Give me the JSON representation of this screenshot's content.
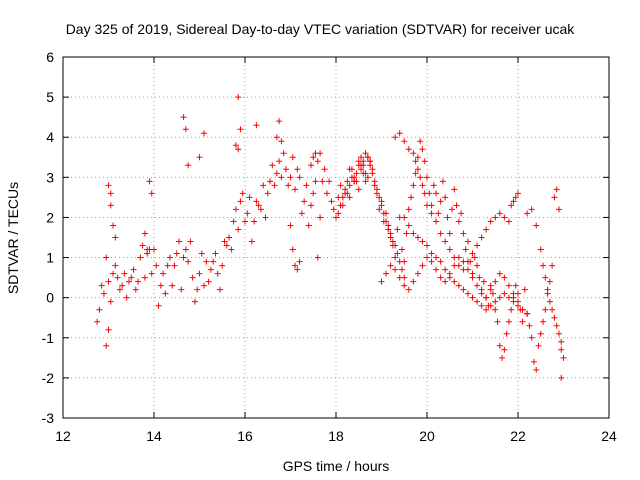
{
  "chart_data": {
    "type": "scatter",
    "title": "Day 325 of 2019, Sidereal Day-to-day VTEC variation (SDTVAR) for receiver ucak",
    "xlabel": "GPS time / hours",
    "ylabel": "SDTVAR / TECUs",
    "xlim": [
      12,
      24
    ],
    "ylim": [
      -3,
      6
    ],
    "xticks": [
      12,
      14,
      16,
      18,
      20,
      22,
      24
    ],
    "yticks": [
      -3,
      -2,
      -1,
      0,
      1,
      2,
      3,
      4,
      5,
      6
    ],
    "xtick_labels": [
      "12",
      "14",
      "16",
      "18",
      "20",
      "22",
      "24"
    ],
    "ytick_labels": [
      "-3",
      "-2",
      "-1",
      "0",
      "1",
      "2",
      "3",
      "4",
      "5",
      "6"
    ],
    "grid": true,
    "marker": "+",
    "series": [
      {
        "name": "ucak",
        "color": "#ff0000",
        "x": [
          12.75,
          12.8,
          12.85,
          12.9,
          12.95,
          13.0,
          13.05,
          13.1,
          13.15,
          13.2,
          13.25,
          13.3,
          13.35,
          13.4,
          13.45,
          13.5,
          13.55,
          13.6,
          13.65,
          13.7,
          13.75,
          13.8,
          13.85,
          13.9,
          13.95,
          14.0,
          14.05,
          14.1,
          14.15,
          14.2,
          14.25,
          14.3,
          14.35,
          14.4,
          14.45,
          14.5,
          14.55,
          14.6,
          14.65,
          14.7,
          14.75,
          14.8,
          14.85,
          14.9,
          14.95,
          15.0,
          15.05,
          15.1,
          15.15,
          15.2,
          15.25,
          15.3,
          15.35,
          15.4,
          15.45,
          15.5,
          15.55,
          15.6,
          15.65,
          15.7,
          15.75,
          15.8,
          15.85,
          15.9,
          15.95,
          16.0,
          16.05,
          16.1,
          16.15,
          16.2,
          16.25,
          16.3,
          16.35,
          16.4,
          16.45,
          16.5,
          16.55,
          16.6,
          16.65,
          16.7,
          16.75,
          16.8,
          16.85,
          16.9,
          16.95,
          17.0,
          17.05,
          17.1,
          17.15,
          17.2,
          17.25,
          17.3,
          17.35,
          17.4,
          17.45,
          17.5,
          17.55,
          17.6,
          17.65,
          17.7,
          17.75,
          17.8,
          17.85,
          17.9,
          17.95,
          18.0,
          18.05,
          18.1,
          18.15,
          18.2,
          18.25,
          18.3,
          18.35,
          18.4,
          18.45,
          18.5,
          18.55,
          18.6,
          18.65,
          18.7,
          18.75,
          18.8,
          18.85,
          18.9,
          18.95,
          19.0,
          19.05,
          19.1,
          19.15,
          19.2,
          19.25,
          19.3,
          19.35,
          19.4,
          19.45,
          19.5,
          19.55,
          19.6,
          19.65,
          19.7,
          19.75,
          19.8,
          19.85,
          19.9,
          19.95,
          20.0,
          20.05,
          20.1,
          20.15,
          20.2,
          20.25,
          20.3,
          20.35,
          20.4,
          20.45,
          20.5,
          20.55,
          20.6,
          20.65,
          20.7,
          20.75,
          20.8,
          20.85,
          20.9,
          20.95,
          21.0,
          21.05,
          21.1,
          21.15,
          21.2,
          21.25,
          21.3,
          21.35,
          21.4,
          21.45,
          21.5,
          21.55,
          21.6,
          21.65,
          21.7,
          21.75,
          21.8,
          21.85,
          21.9,
          21.95,
          22.0,
          22.05,
          22.1,
          22.15,
          22.2,
          22.25,
          22.3,
          22.35,
          22.4,
          22.45,
          22.5,
          22.55,
          22.6,
          22.65,
          22.7,
          22.75,
          22.8,
          22.85,
          22.9,
          22.95,
          23.0,
          12.95,
          13.0,
          13.05,
          13.0,
          13.05,
          13.1,
          13.15,
          13.8,
          13.85,
          13.9,
          13.95,
          14.65,
          14.7,
          14.75,
          15.0,
          15.1,
          15.85,
          15.9,
          15.8,
          15.85,
          16.25,
          16.7,
          16.75,
          16.8,
          17.0,
          17.05,
          17.1,
          17.15,
          17.2,
          17.45,
          17.5,
          17.55,
          17.6,
          17.65,
          18.3,
          18.4,
          18.5,
          18.55,
          18.6,
          18.65,
          18.7,
          18.75,
          19.3,
          19.4,
          19.5,
          19.6,
          19.7,
          19.75,
          19.8,
          19.85,
          19.9,
          19.95,
          20.0,
          20.1,
          20.2,
          20.3,
          20.4,
          20.5,
          20.6,
          20.7,
          20.8,
          20.9,
          21.0,
          21.1,
          21.2,
          21.3,
          21.4,
          21.5,
          21.6,
          21.7,
          21.8,
          21.85,
          21.9,
          21.95,
          22.0,
          22.2,
          22.3,
          22.4,
          22.5,
          22.55,
          22.6,
          22.65,
          22.7,
          22.75,
          22.8,
          22.85,
          22.9,
          22.95,
          22.95,
          19.5,
          19.6,
          19.7,
          19.8,
          19.9,
          20.0,
          20.1,
          20.2,
          20.3,
          20.4,
          20.5,
          20.6,
          20.7,
          20.8,
          20.9,
          21.0,
          21.1,
          21.2,
          21.3,
          21.4,
          21.5,
          21.6,
          21.7,
          21.8,
          21.9,
          22.0,
          22.1,
          22.2,
          19.0,
          19.1,
          19.2,
          19.3,
          19.4,
          19.5,
          19.6,
          19.7,
          19.8,
          19.9,
          20.0,
          20.1,
          20.2,
          20.3,
          20.4,
          20.5,
          20.6,
          20.7,
          20.8,
          20.9,
          21.0,
          21.1,
          21.2,
          21.3,
          21.4,
          21.5,
          21.6,
          21.7,
          21.8,
          21.9,
          22.0,
          22.1,
          22.2,
          18.05,
          18.1,
          18.15,
          18.2,
          18.25,
          18.3,
          18.35,
          18.4,
          18.45,
          18.5,
          18.55,
          18.6,
          18.65,
          18.7,
          18.75,
          18.8,
          18.85,
          18.9,
          18.95,
          19.0,
          19.05,
          19.1,
          19.15,
          19.2,
          19.25,
          19.3,
          19.35,
          19.4,
          19.45,
          19.5
        ],
        "y": [
          -0.6,
          -0.3,
          0.3,
          0.1,
          1.0,
          0.4,
          -0.1,
          0.6,
          0.8,
          0.5,
          0.2,
          0.3,
          0.6,
          0.0,
          0.4,
          0.5,
          0.7,
          0.2,
          0.4,
          1.0,
          1.3,
          0.5,
          1.1,
          1.2,
          0.6,
          1.2,
          0.8,
          -0.2,
          0.3,
          0.6,
          0.1,
          0.8,
          1.0,
          0.3,
          0.8,
          1.1,
          1.4,
          0.2,
          1.0,
          1.2,
          0.9,
          1.4,
          0.5,
          -0.1,
          0.2,
          0.6,
          1.1,
          0.3,
          0.9,
          0.4,
          0.7,
          0.9,
          1.1,
          0.6,
          0.2,
          0.8,
          1.4,
          1.3,
          1.5,
          1.2,
          1.9,
          2.2,
          1.7,
          2.4,
          2.6,
          1.9,
          2.1,
          2.5,
          1.4,
          1.9,
          2.4,
          2.3,
          2.2,
          2.8,
          2.0,
          2.6,
          2.9,
          3.3,
          2.8,
          3.1,
          3.4,
          3.0,
          3.6,
          3.2,
          2.8,
          3.0,
          3.5,
          2.7,
          3.2,
          3.0,
          2.1,
          2.4,
          2.8,
          1.8,
          2.3,
          2.6,
          2.9,
          1.0,
          2.0,
          2.9,
          3.2,
          2.6,
          2.9,
          2.4,
          2.2,
          2.0,
          2.5,
          2.8,
          2.3,
          2.6,
          2.9,
          2.5,
          3.2,
          3.0,
          2.9,
          3.4,
          3.5,
          3.3,
          3.1,
          3.5,
          3.4,
          3.2,
          2.8,
          2.6,
          2.2,
          2.4,
          1.9,
          2.1,
          1.7,
          1.5,
          1.3,
          1.0,
          1.7,
          2.0,
          1.2,
          0.9,
          1.6,
          2.2,
          2.5,
          2.8,
          3.1,
          3.5,
          3.9,
          3.7,
          3.4,
          3.0,
          2.6,
          2.3,
          2.8,
          2.6,
          2.1,
          2.4,
          2.9,
          2.5,
          2.0,
          1.6,
          2.2,
          2.7,
          2.3,
          1.9,
          2.1,
          1.6,
          1.2,
          1.4,
          0.9,
          0.6,
          1.0,
          0.8,
          0.5,
          0.2,
          0.4,
          0.0,
          -0.2,
          0.3,
          0.1,
          -0.3,
          -0.6,
          -1.2,
          -1.5,
          -1.3,
          -0.9,
          -0.6,
          -0.3,
          0.0,
          0.3,
          0.1,
          -0.3,
          -0.6,
          0.2,
          -0.4,
          -0.7,
          -1.0,
          -1.6,
          -1.8,
          -1.2,
          -0.9,
          -0.6,
          -0.3,
          0.1,
          0.4,
          0.8,
          2.5,
          2.7,
          2.2,
          -1.3,
          -1.5,
          -1.2,
          -0.8,
          2.6,
          2.8,
          2.3,
          1.8,
          1.5,
          1.6,
          1.2,
          2.9,
          2.6,
          4.5,
          4.2,
          3.3,
          3.5,
          4.1,
          5.0,
          4.2,
          3.8,
          3.7,
          4.3,
          4.0,
          4.4,
          3.9,
          1.8,
          1.2,
          0.8,
          0.7,
          0.9,
          3.3,
          3.5,
          3.6,
          3.4,
          3.6,
          3.2,
          2.9,
          2.7,
          3.3,
          3.1,
          2.9,
          3.0,
          3.4,
          4.0,
          4.1,
          3.9,
          3.7,
          3.6,
          3.4,
          3.2,
          3.0,
          2.8,
          2.6,
          2.3,
          2.1,
          1.9,
          1.6,
          1.4,
          1.2,
          1.0,
          0.8,
          0.7,
          0.9,
          1.1,
          1.3,
          1.5,
          1.7,
          1.9,
          2.0,
          2.1,
          2.0,
          1.9,
          2.3,
          2.4,
          2.5,
          2.6,
          2.1,
          2.2,
          1.8,
          1.2,
          0.8,
          0.5,
          0.2,
          -0.1,
          -0.3,
          -0.5,
          -0.7,
          -0.9,
          -1.1,
          -2.0,
          2.0,
          1.8,
          1.6,
          1.5,
          1.4,
          1.3,
          1.1,
          1.0,
          0.9,
          0.7,
          0.5,
          0.4,
          0.3,
          0.2,
          0.1,
          0.0,
          -0.1,
          -0.2,
          -0.3,
          -0.2,
          -0.1,
          0.0,
          0.1,
          0.0,
          -0.1,
          -0.2,
          -0.3,
          -0.4,
          0.4,
          0.6,
          0.8,
          0.7,
          0.5,
          0.3,
          0.2,
          0.4,
          0.6,
          0.8,
          1.0,
          0.9,
          0.7,
          0.5,
          0.4,
          0.6,
          0.8,
          1.0,
          0.9,
          0.7,
          0.5,
          0.3,
          0.1,
          0.0,
          0.2,
          0.4,
          0.6,
          0.5,
          0.3,
          0.1,
          -0.1,
          -0.3,
          -0.4,
          2.1,
          2.3,
          2.5,
          2.7,
          2.6,
          2.8,
          3.0,
          2.9,
          3.1,
          3.3,
          3.2,
          3.4,
          3.6,
          3.5,
          3.3,
          3.1,
          2.9,
          2.7,
          2.5,
          2.3,
          2.1,
          1.9,
          1.8,
          1.6,
          1.4,
          1.3,
          1.1,
          0.9,
          0.7,
          0.5
        ]
      }
    ]
  }
}
